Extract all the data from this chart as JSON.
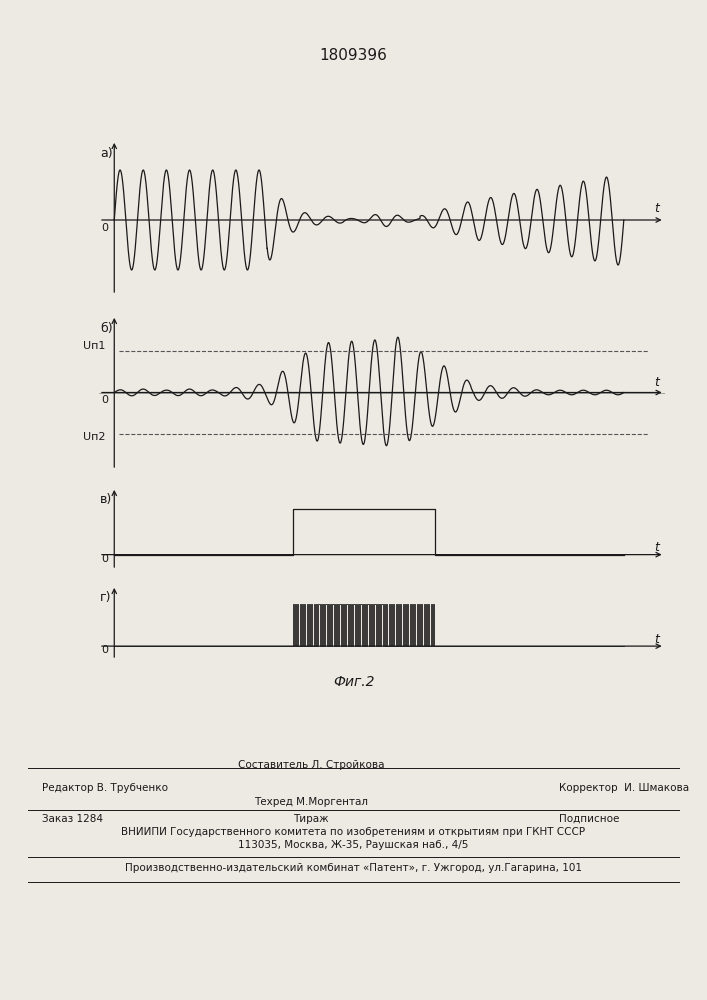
{
  "title": "1809396",
  "title_fontsize": 11,
  "fig_bg": "#ede9e3",
  "panel_labels": [
    "а)",
    "б)",
    "в)",
    "г)"
  ],
  "axis_label_t": "t",
  "axis_label_0": "0",
  "Un1_label": "Uп1",
  "Un2_label": "Uп2",
  "fig_caption": "Фиг.2",
  "footer_line1_left": "Редактор В. Трубченко",
  "footer_line1_center_top": "Составитель Л. Стройкова",
  "footer_line1_center_bot": "Техред М.Моргентал",
  "footer_line1_right": "Корректор  И. Шмакова",
  "footer_line2_left": "Заказ 1284",
  "footer_line2_center": "Тираж",
  "footer_line2_right": "Подписное",
  "footer_line3": "ВНИИПИ Государственного комитета по изобретениям и открытиям при ГКНТ СССР",
  "footer_line4": "113035, Москва, Ж-35, Раушская наб., 4/5",
  "footer_line5": "Производственно-издательский комбинат «Патент», г. Ужгород, ул.Гагарина, 101",
  "line_color": "#1a1a1a",
  "dashed_color": "#555555",
  "font_size_small": 8,
  "font_size_medium": 9,
  "font_size_footer": 7.5
}
